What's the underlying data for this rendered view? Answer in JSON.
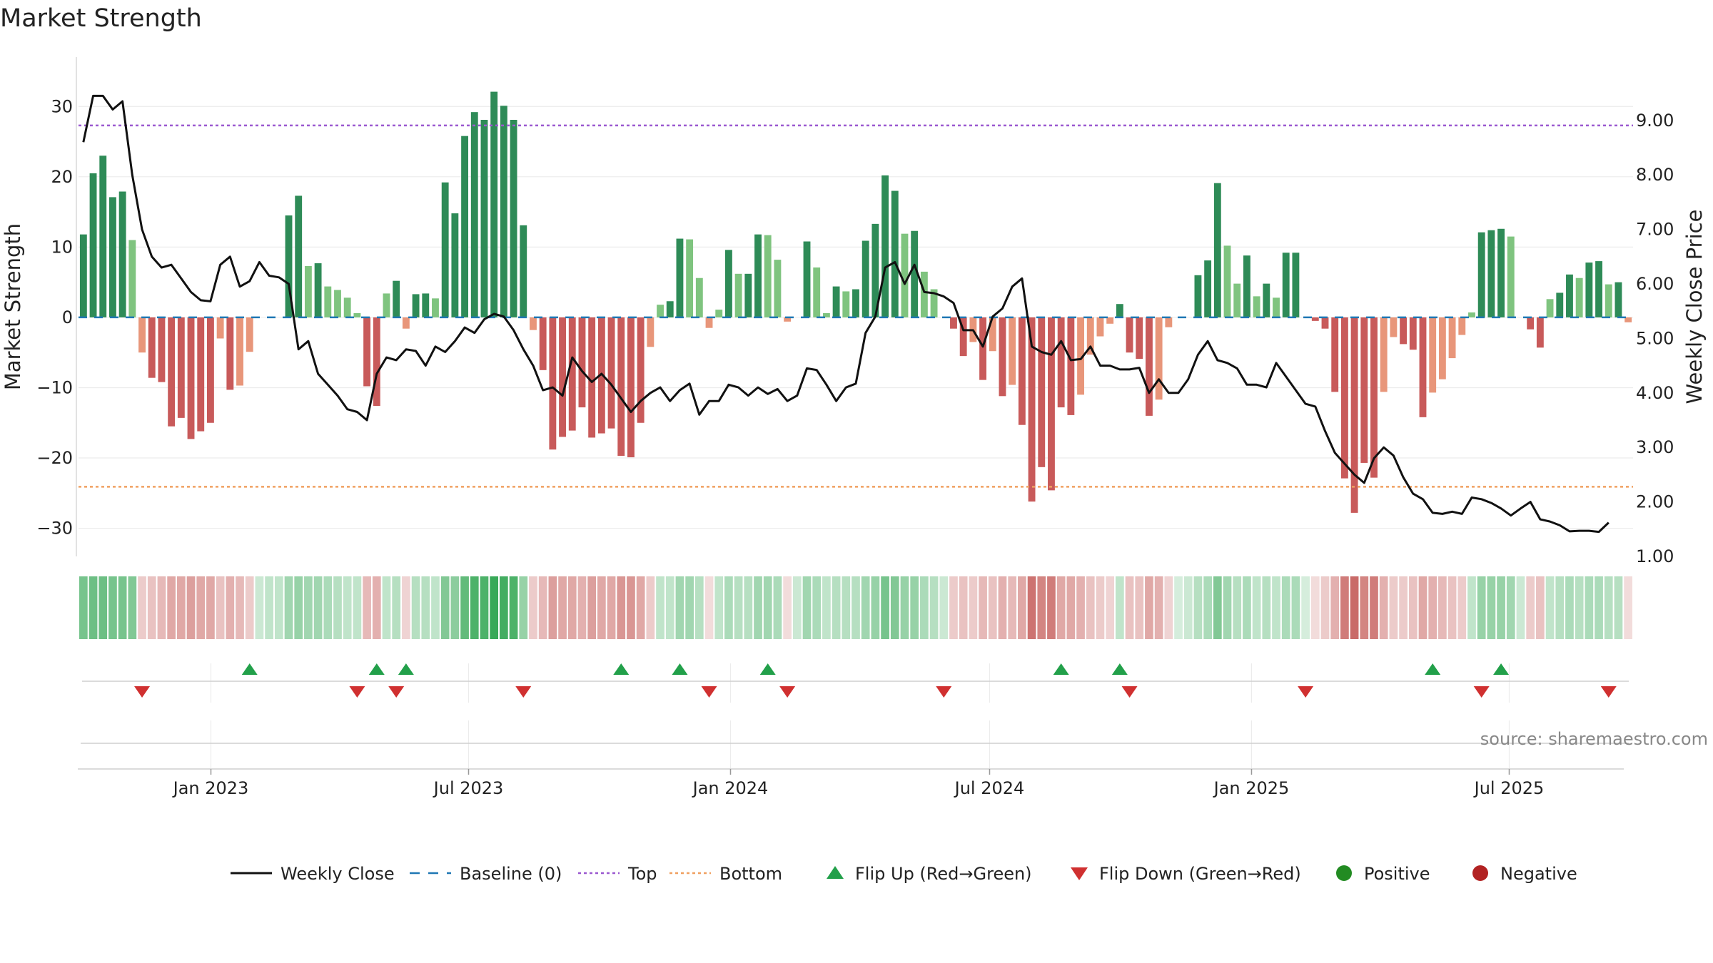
{
  "title": "Market Strength",
  "source_text": "source: sharemaestro.com",
  "colors": {
    "strong_pos": "#2e8b57",
    "weak_pos": "#7fc47f",
    "strong_neg": "#c85a5a",
    "weak_neg": "#e8967a",
    "line": "#111111",
    "baseline": "#1f77b4",
    "top": "#9b59d0",
    "bottom": "#f0a060",
    "flip_up": "#22a04a",
    "flip_down": "#d03030",
    "positive": "#228b22",
    "negative": "#b22222"
  },
  "chart_data": {
    "type": "bar",
    "title": "Market Strength",
    "ylabel": "Market Strength",
    "y2label": "Weekly Close Price",
    "ylim": [
      -34,
      35
    ],
    "y2lim": [
      1.0,
      9.9
    ],
    "yticks": [
      "30",
      "20",
      "10",
      "0",
      "−10",
      "−20",
      "−30"
    ],
    "y2ticks": [
      "9.00",
      "8.00",
      "7.00",
      "6.00",
      "5.00",
      "4.00",
      "3.00",
      "2.00",
      "1.00"
    ],
    "xticks": [
      "Jan 2023",
      "Jul 2023",
      "Jan 2024",
      "Jul 2024",
      "Jan 2025",
      "Jul 2025"
    ],
    "xtick_dates": [
      "2023-01-01",
      "2023-07-01",
      "2024-01-01",
      "2024-07-01",
      "2025-01-01",
      "2025-07-01"
    ],
    "x_start": "2022-09-30",
    "x_end": "2025-09-26",
    "top_threshold": 27.3,
    "bottom_threshold": -24.1,
    "baseline": 0,
    "strength": [
      11.8,
      20.5,
      23,
      17.1,
      17.9,
      11,
      -5,
      -8.6,
      -9.2,
      -15.5,
      -14.3,
      -17.3,
      -16.2,
      -15,
      -3,
      -10.3,
      -9.7,
      -4.9,
      0,
      0,
      0,
      14.5,
      17.3,
      7.3,
      7.7,
      4.4,
      3.9,
      2.8,
      0.6,
      -9.8,
      -12.6,
      3.4,
      5.2,
      -1.6,
      3.3,
      3.4,
      2.7,
      19.2,
      14.8,
      25.8,
      29.2,
      28.1,
      32.1,
      30.1,
      28.1,
      13.1,
      -1.8,
      -7.5,
      -18.8,
      -17,
      -16.1,
      -12.8,
      -17.1,
      -16.5,
      -15.8,
      -19.7,
      -19.9,
      -15,
      -4.2,
      1.8,
      2.3,
      11.2,
      11.1,
      5.6,
      -1.5,
      1.1,
      9.6,
      6.2,
      6.2,
      11.8,
      11.7,
      8.2,
      -0.6,
      0,
      10.8,
      7.1,
      0.6,
      4.4,
      3.7,
      4,
      10.9,
      13.3,
      20.2,
      18,
      11.9,
      12.3,
      6.5,
      4,
      0,
      -1.6,
      -5.5,
      -3.5,
      -8.9,
      -4.8,
      -11.2,
      -9.6,
      -15.3,
      -26.2,
      -21.3,
      -24.6,
      -12.8,
      -13.9,
      -11,
      -5.3,
      -2.7,
      -0.9,
      1.9,
      -5,
      -5.9,
      -14,
      -11.7,
      -1.4,
      0,
      0,
      6,
      8.1,
      19.1,
      10.2,
      4.8,
      8.8,
      3,
      4.8,
      2.8,
      9.2,
      9.2,
      0,
      -0.5,
      -1.6,
      -10.6,
      -22.9,
      -27.8,
      -20.7,
      -22.8,
      -10.6,
      -2.8,
      -3.8,
      -4.6,
      -14.2,
      -10.7,
      -8.8,
      -5.8,
      -2.5,
      0.7,
      12.1,
      12.4,
      12.6,
      11.5,
      0,
      -1.7,
      -4.3,
      2.6,
      3.5,
      6.1,
      5.6,
      7.8,
      8,
      4.7,
      5,
      -0.7
    ],
    "close": [
      8.6,
      9.45,
      9.45,
      9.2,
      9.35,
      8.0,
      7.0,
      6.5,
      6.3,
      6.35,
      6.1,
      5.85,
      5.7,
      5.68,
      6.35,
      6.5,
      5.95,
      6.05,
      6.4,
      6.15,
      6.12,
      6.0,
      4.8,
      4.95,
      4.35,
      4.15,
      3.95,
      3.7,
      3.65,
      3.5,
      4.35,
      4.65,
      4.6,
      4.8,
      4.77,
      4.5,
      4.85,
      4.75,
      4.95,
      5.2,
      5.1,
      5.35,
      5.45,
      5.4,
      5.15,
      4.8,
      4.5,
      4.05,
      4.1,
      3.95,
      4.65,
      4.4,
      4.2,
      4.35,
      4.15,
      3.9,
      3.65,
      3.85,
      4.0,
      4.1,
      3.85,
      4.05,
      4.17,
      3.6,
      3.85,
      3.85,
      4.15,
      4.1,
      3.95,
      4.1,
      3.98,
      4.07,
      3.85,
      3.95,
      4.45,
      4.42,
      4.15,
      3.85,
      4.1,
      4.17,
      5.1,
      5.4,
      6.3,
      6.4,
      6.0,
      6.35,
      5.85,
      5.83,
      5.77,
      5.65,
      5.15,
      5.15,
      4.85,
      5.4,
      5.55,
      5.95,
      6.1,
      4.85,
      4.75,
      4.7,
      4.95,
      4.6,
      4.62,
      4.85,
      4.5,
      4.5,
      4.43,
      4.43,
      4.46,
      4.0,
      4.25,
      4.0,
      4.0,
      4.25,
      4.7,
      4.95,
      4.6,
      4.55,
      4.45,
      4.15,
      4.15,
      4.1,
      4.55,
      4.3,
      4.05,
      3.8,
      3.75,
      3.3,
      2.9,
      2.7,
      2.5,
      2.35,
      2.8,
      3.0,
      2.85,
      2.45,
      2.15,
      2.05,
      1.8,
      1.78,
      1.82,
      1.78,
      2.08,
      2.05,
      1.98,
      1.88,
      1.75,
      1.88,
      2.0,
      1.68,
      1.64,
      1.57,
      1.46,
      1.47,
      1.47,
      1.45,
      1.62
    ],
    "strip_levels": [
      0.65,
      0.7,
      0.7,
      0.65,
      0.65,
      0.6,
      0.3,
      0.35,
      0.4,
      0.5,
      0.5,
      0.55,
      0.5,
      0.5,
      0.35,
      0.45,
      0.4,
      0.3,
      0.25,
      0.3,
      0.3,
      0.45,
      0.5,
      0.45,
      0.45,
      0.4,
      0.35,
      0.3,
      0.3,
      0.4,
      0.45,
      0.3,
      0.35,
      0.25,
      0.35,
      0.35,
      0.3,
      0.6,
      0.55,
      0.75,
      0.85,
      0.85,
      0.95,
      0.9,
      0.85,
      0.5,
      0.3,
      0.4,
      0.55,
      0.5,
      0.5,
      0.45,
      0.55,
      0.5,
      0.5,
      0.6,
      0.6,
      0.5,
      0.3,
      0.3,
      0.3,
      0.45,
      0.45,
      0.35,
      0.2,
      0.3,
      0.4,
      0.35,
      0.35,
      0.45,
      0.45,
      0.4,
      0.2,
      0.25,
      0.45,
      0.4,
      0.3,
      0.35,
      0.35,
      0.35,
      0.45,
      0.5,
      0.65,
      0.6,
      0.5,
      0.5,
      0.4,
      0.35,
      0.25,
      0.3,
      0.35,
      0.3,
      0.4,
      0.35,
      0.45,
      0.4,
      0.5,
      0.8,
      0.7,
      0.75,
      0.5,
      0.5,
      0.45,
      0.35,
      0.3,
      0.25,
      0.3,
      0.35,
      0.35,
      0.5,
      0.45,
      0.25,
      0.2,
      0.25,
      0.35,
      0.4,
      0.6,
      0.45,
      0.35,
      0.4,
      0.3,
      0.35,
      0.3,
      0.4,
      0.4,
      0.2,
      0.2,
      0.3,
      0.45,
      0.75,
      0.85,
      0.7,
      0.75,
      0.45,
      0.3,
      0.3,
      0.35,
      0.5,
      0.45,
      0.4,
      0.35,
      0.3,
      0.3,
      0.5,
      0.5,
      0.5,
      0.45,
      0.25,
      0.3,
      0.35,
      0.3,
      0.35,
      0.4,
      0.35,
      0.4,
      0.4,
      0.35,
      0.35,
      0.2
    ],
    "flip_up_weeks": [
      17,
      30,
      33,
      55,
      61,
      70,
      100,
      106,
      138,
      145
    ],
    "flip_down_weeks": [
      6,
      28,
      32,
      45,
      64,
      72,
      88,
      107,
      125,
      143,
      156
    ],
    "legend": [
      {
        "label": "Weekly Close",
        "kind": "line"
      },
      {
        "label": "Baseline (0)",
        "kind": "dash"
      },
      {
        "label": "Top",
        "kind": "dot-top"
      },
      {
        "label": "Bottom",
        "kind": "dot-bottom"
      },
      {
        "label": "Flip Up (Red→Green)",
        "kind": "tri-up"
      },
      {
        "label": "Flip Down (Green→Red)",
        "kind": "tri-down"
      },
      {
        "label": "Positive",
        "kind": "circle-pos"
      },
      {
        "label": "Negative",
        "kind": "circle-neg"
      }
    ]
  }
}
